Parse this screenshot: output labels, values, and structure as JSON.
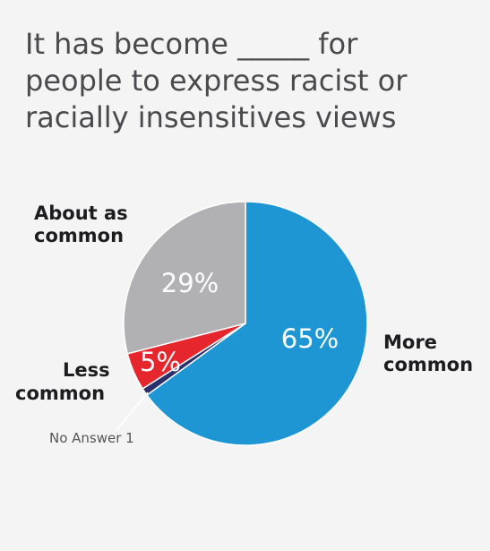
{
  "chart_data": {
    "type": "pie",
    "title": [
      "It has become _____ for",
      "people to express racist or",
      "racially insensitives views"
    ],
    "slices": [
      {
        "name": "More common",
        "label_lines": [
          "More",
          "common"
        ],
        "value": 65,
        "value_label": "65%",
        "color": "#1e96d4"
      },
      {
        "name": "No Answer",
        "label_lines": [
          "No Answer 1"
        ],
        "value": 1,
        "value_label": "",
        "color": "#2b2f6b"
      },
      {
        "name": "Less common",
        "label_lines": [
          "Less",
          "common"
        ],
        "value": 5,
        "value_label": "5%",
        "color": "#e5262d"
      },
      {
        "name": "About as common",
        "label_lines": [
          "About as",
          "common"
        ],
        "value": 29,
        "value_label": "29%",
        "color": "#b1b1b3"
      }
    ],
    "start_angle_deg": 0,
    "direction": "clockwise"
  }
}
